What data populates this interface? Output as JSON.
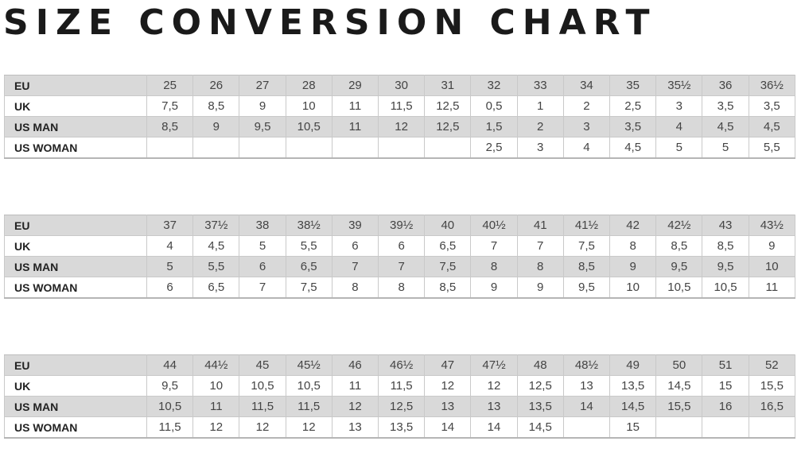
{
  "title": "SIZE CONVERSION CHART",
  "tables": [
    {
      "rows": [
        {
          "label": "EU",
          "values": [
            "25",
            "26",
            "27",
            "28",
            "29",
            "30",
            "31",
            "32",
            "33",
            "34",
            "35",
            "35½",
            "36",
            "36½"
          ]
        },
        {
          "label": "UK",
          "values": [
            "7,5",
            "8,5",
            "9",
            "10",
            "11",
            "11,5",
            "12,5",
            "0,5",
            "1",
            "2",
            "2,5",
            "3",
            "3,5",
            "3,5"
          ]
        },
        {
          "label": "US MAN",
          "values": [
            "8,5",
            "9",
            "9,5",
            "10,5",
            "11",
            "12",
            "12,5",
            "1,5",
            "2",
            "3",
            "3,5",
            "4",
            "4,5",
            "4,5"
          ]
        },
        {
          "label": "US WOMAN",
          "values": [
            "",
            "",
            "",
            "",
            "",
            "",
            "",
            "2,5",
            "3",
            "4",
            "4,5",
            "5",
            "5",
            "5,5"
          ]
        }
      ]
    },
    {
      "rows": [
        {
          "label": "EU",
          "values": [
            "37",
            "37½",
            "38",
            "38½",
            "39",
            "39½",
            "40",
            "40½",
            "41",
            "41½",
            "42",
            "42½",
            "43",
            "43½"
          ]
        },
        {
          "label": "UK",
          "values": [
            "4",
            "4,5",
            "5",
            "5,5",
            "6",
            "6",
            "6,5",
            "7",
            "7",
            "7,5",
            "8",
            "8,5",
            "8,5",
            "9"
          ]
        },
        {
          "label": "US MAN",
          "values": [
            "5",
            "5,5",
            "6",
            "6,5",
            "7",
            "7",
            "7,5",
            "8",
            "8",
            "8,5",
            "9",
            "9,5",
            "9,5",
            "10"
          ]
        },
        {
          "label": "US WOMAN",
          "values": [
            "6",
            "6,5",
            "7",
            "7,5",
            "8",
            "8",
            "8,5",
            "9",
            "9",
            "9,5",
            "10",
            "10,5",
            "10,5",
            "11"
          ]
        }
      ]
    },
    {
      "rows": [
        {
          "label": "EU",
          "values": [
            "44",
            "44½",
            "45",
            "45½",
            "46",
            "46½",
            "47",
            "47½",
            "48",
            "48½",
            "49",
            "50",
            "51",
            "52"
          ]
        },
        {
          "label": "UK",
          "values": [
            "9,5",
            "10",
            "10,5",
            "10,5",
            "11",
            "11,5",
            "12",
            "12",
            "12,5",
            "13",
            "13,5",
            "14,5",
            "15",
            "15,5"
          ]
        },
        {
          "label": "US MAN",
          "values": [
            "10,5",
            "11",
            "11,5",
            "11,5",
            "12",
            "12,5",
            "13",
            "13",
            "13,5",
            "14",
            "14,5",
            "15,5",
            "16",
            "16,5"
          ]
        },
        {
          "label": "US WOMAN",
          "values": [
            "11,5",
            "12",
            "12",
            "12",
            "13",
            "13,5",
            "14",
            "14",
            "14,5",
            "",
            "15",
            "",
            "",
            ""
          ]
        }
      ]
    }
  ]
}
